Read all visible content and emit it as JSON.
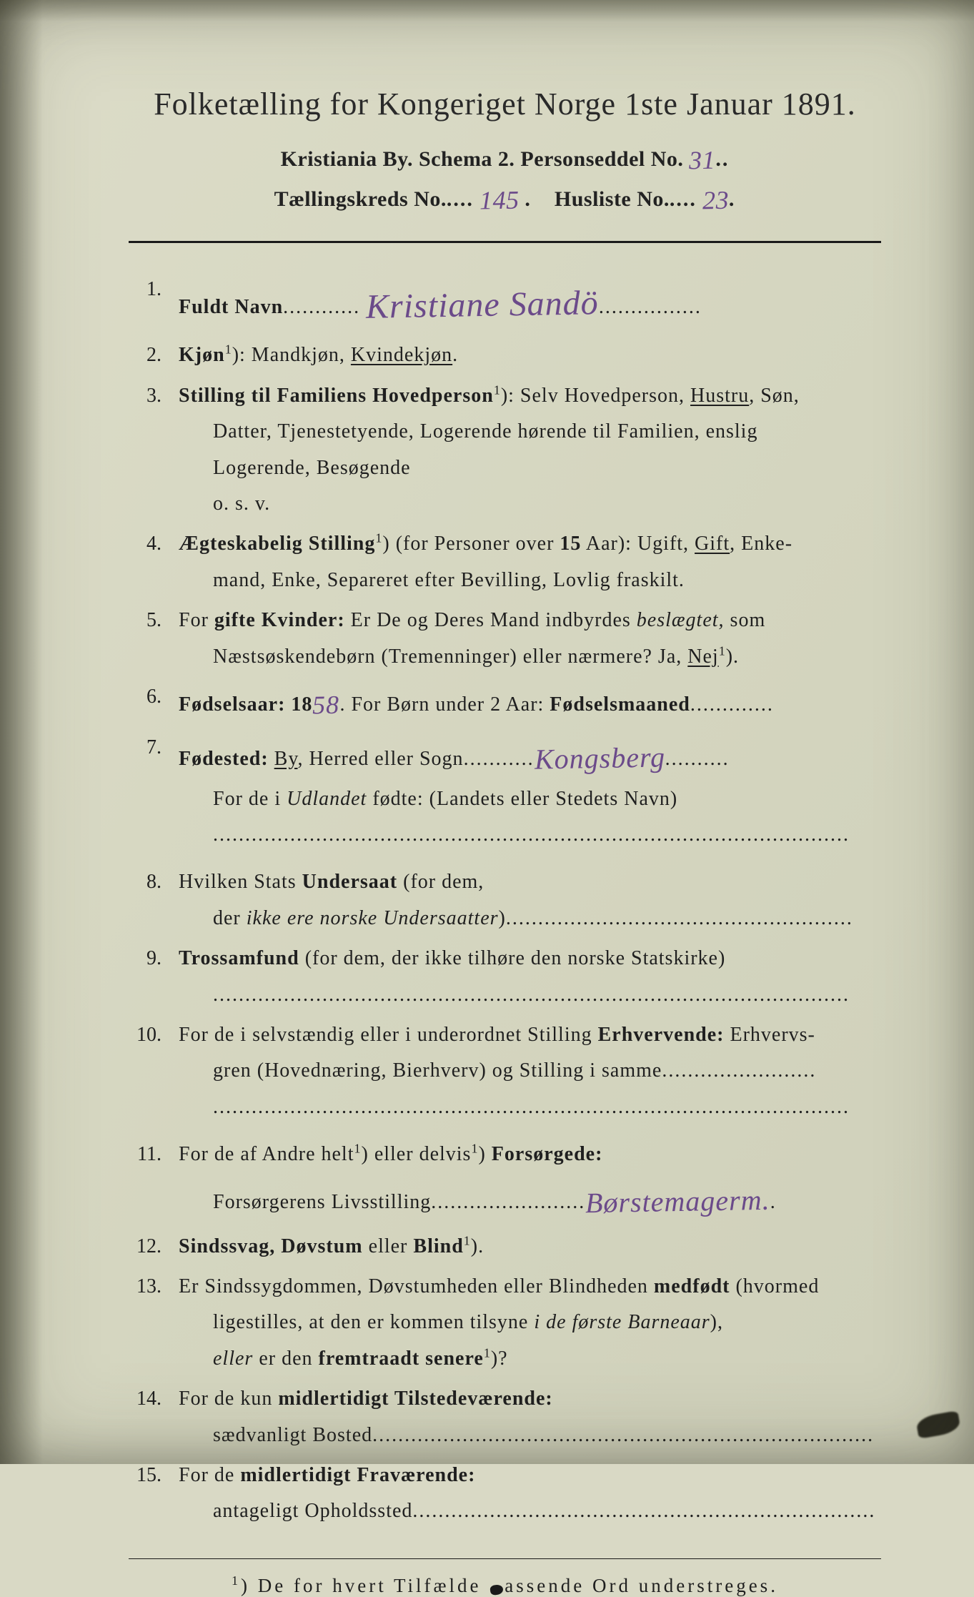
{
  "colors": {
    "paper": "#d9d9c5",
    "ink": "#1f1f1f",
    "handwriting": "#6b4a8a"
  },
  "header": {
    "title": "Folketælling for Kongeriget Norge 1ste Januar 1891.",
    "line2_prefix": "Kristiania By.   Schema 2.   Personseddel No.",
    "personseddel_no": "31",
    "line3_a": "Tællingskreds No.",
    "kreds_no": "145",
    "line3_b": "Husliste No.",
    "husliste_no": "23"
  },
  "items": {
    "n1": {
      "num": "1.",
      "label": "Fuldt Navn",
      "value": "Kristiane   Sandö"
    },
    "n2": {
      "num": "2.",
      "label": "Kjøn",
      "sup": "1",
      "rest": "): Mandkjøn, ",
      "underlined": "Kvindekjøn",
      "tail": "."
    },
    "n3": {
      "num": "3.",
      "label": "Stilling til Familiens Hovedperson",
      "sup": "1",
      "line1_a": "): Selv Hovedperson, ",
      "underlined": "Hustru",
      "line1_b": ", Søn,",
      "line2": "Datter,  Tjenestetyende,  Logerende  hørende  til  Familien,  enslig",
      "line3": "Logerende,  Besøgende",
      "line4": "o. s. v."
    },
    "n4": {
      "num": "4.",
      "label": "Ægteskabelig Stilling",
      "sup": "1",
      "line1_a": ") (for Personer over ",
      "bold15": "15",
      "line1_b": " Aar): Ugift, ",
      "underlined": "Gift",
      "line1_c": ", Enke-",
      "line2": "mand, Enke, Separeret efter Bevilling, Lovlig fraskilt."
    },
    "n5": {
      "num": "5.",
      "line1_a": "For ",
      "bold_a": "gifte Kvinder:",
      "line1_b": " Er De og Deres Mand indbyrdes ",
      "ital": "beslægtet,",
      "line1_c": " som",
      "line2_a": "Næstsøskendebørn (Tremenninger) eller nærmere?  Ja, ",
      "underlined": "Nej",
      "sup": "1",
      "line2_b": ")."
    },
    "n6": {
      "num": "6.",
      "label": "Fødselsaar: 18",
      "year": "58",
      "mid": ".   For Børn under 2 Aar: ",
      "bold2": "Fødselsmaaned"
    },
    "n7": {
      "num": "7.",
      "label": "Fødested:",
      "line1_a": " ",
      "underlined": "By",
      "line1_b": ", Herred eller Sogn",
      "place": "Kongsberg",
      "line2_a": "For de i ",
      "ital": "Udlandet",
      "line2_b": " fødte: (Landets eller Stedets Navn)"
    },
    "n8": {
      "num": "8.",
      "line1_a": "Hvilken Stats ",
      "bold": "Undersaat",
      "line1_b": " (for dem,",
      "line2_a": "der ",
      "ital": "ikke ere norske Undersaatter",
      "line2_b": ")"
    },
    "n9": {
      "num": "9.",
      "bold": "Trossamfund",
      "rest": "  (for  dem,  der  ikke  tilhøre  den  norske  Statskirke)"
    },
    "n10": {
      "num": "10.",
      "line1_a": "For de i selvstændig eller i underordnet Stilling ",
      "bold": "Erhvervende:",
      "line1_b": " Erhvervs-",
      "line2": "gren (Hovednæring, Bierhverv) og Stilling i samme"
    },
    "n11": {
      "num": "11.",
      "line1_a": "For de af Andre helt",
      "sup1": "1",
      "line1_b": ") eller delvis",
      "sup2": "1",
      "line1_c": ") ",
      "bold": "Forsørgede:",
      "line2": "Forsørgerens Livsstilling",
      "value": "Børstemagerm."
    },
    "n12": {
      "num": "12.",
      "bold": "Sindssvag, Døvstum",
      "mid": " eller ",
      "bold2": "Blind",
      "sup": "1",
      "tail": ")."
    },
    "n13": {
      "num": "13.",
      "line1_a": "Er Sindssygdommen, Døvstumheden eller Blindheden ",
      "bold1": "medfødt",
      "line1_b": " (hvormed",
      "line2_a": "ligestilles, at den er kommen tilsyne ",
      "ital": "i de første Barneaar",
      "line2_b": "),",
      "line3_a": "eller",
      "line3_b": " er den ",
      "bold2": "fremtraadt senere",
      "sup": "1",
      "line3_c": ")?"
    },
    "n14": {
      "num": "14.",
      "line1_a": "For de kun ",
      "bold": "midlertidigt Tilstedeværende:",
      "line2": "sædvanligt Bosted"
    },
    "n15": {
      "num": "15.",
      "line1_a": "For de ",
      "bold": "midlertidigt Fraværende:",
      "line2": "antageligt Opholdssted"
    }
  },
  "footnote": {
    "sup": "1",
    "text_a": ") De for hvert Tilfælde ",
    "text_b": "assende Ord understreges."
  }
}
